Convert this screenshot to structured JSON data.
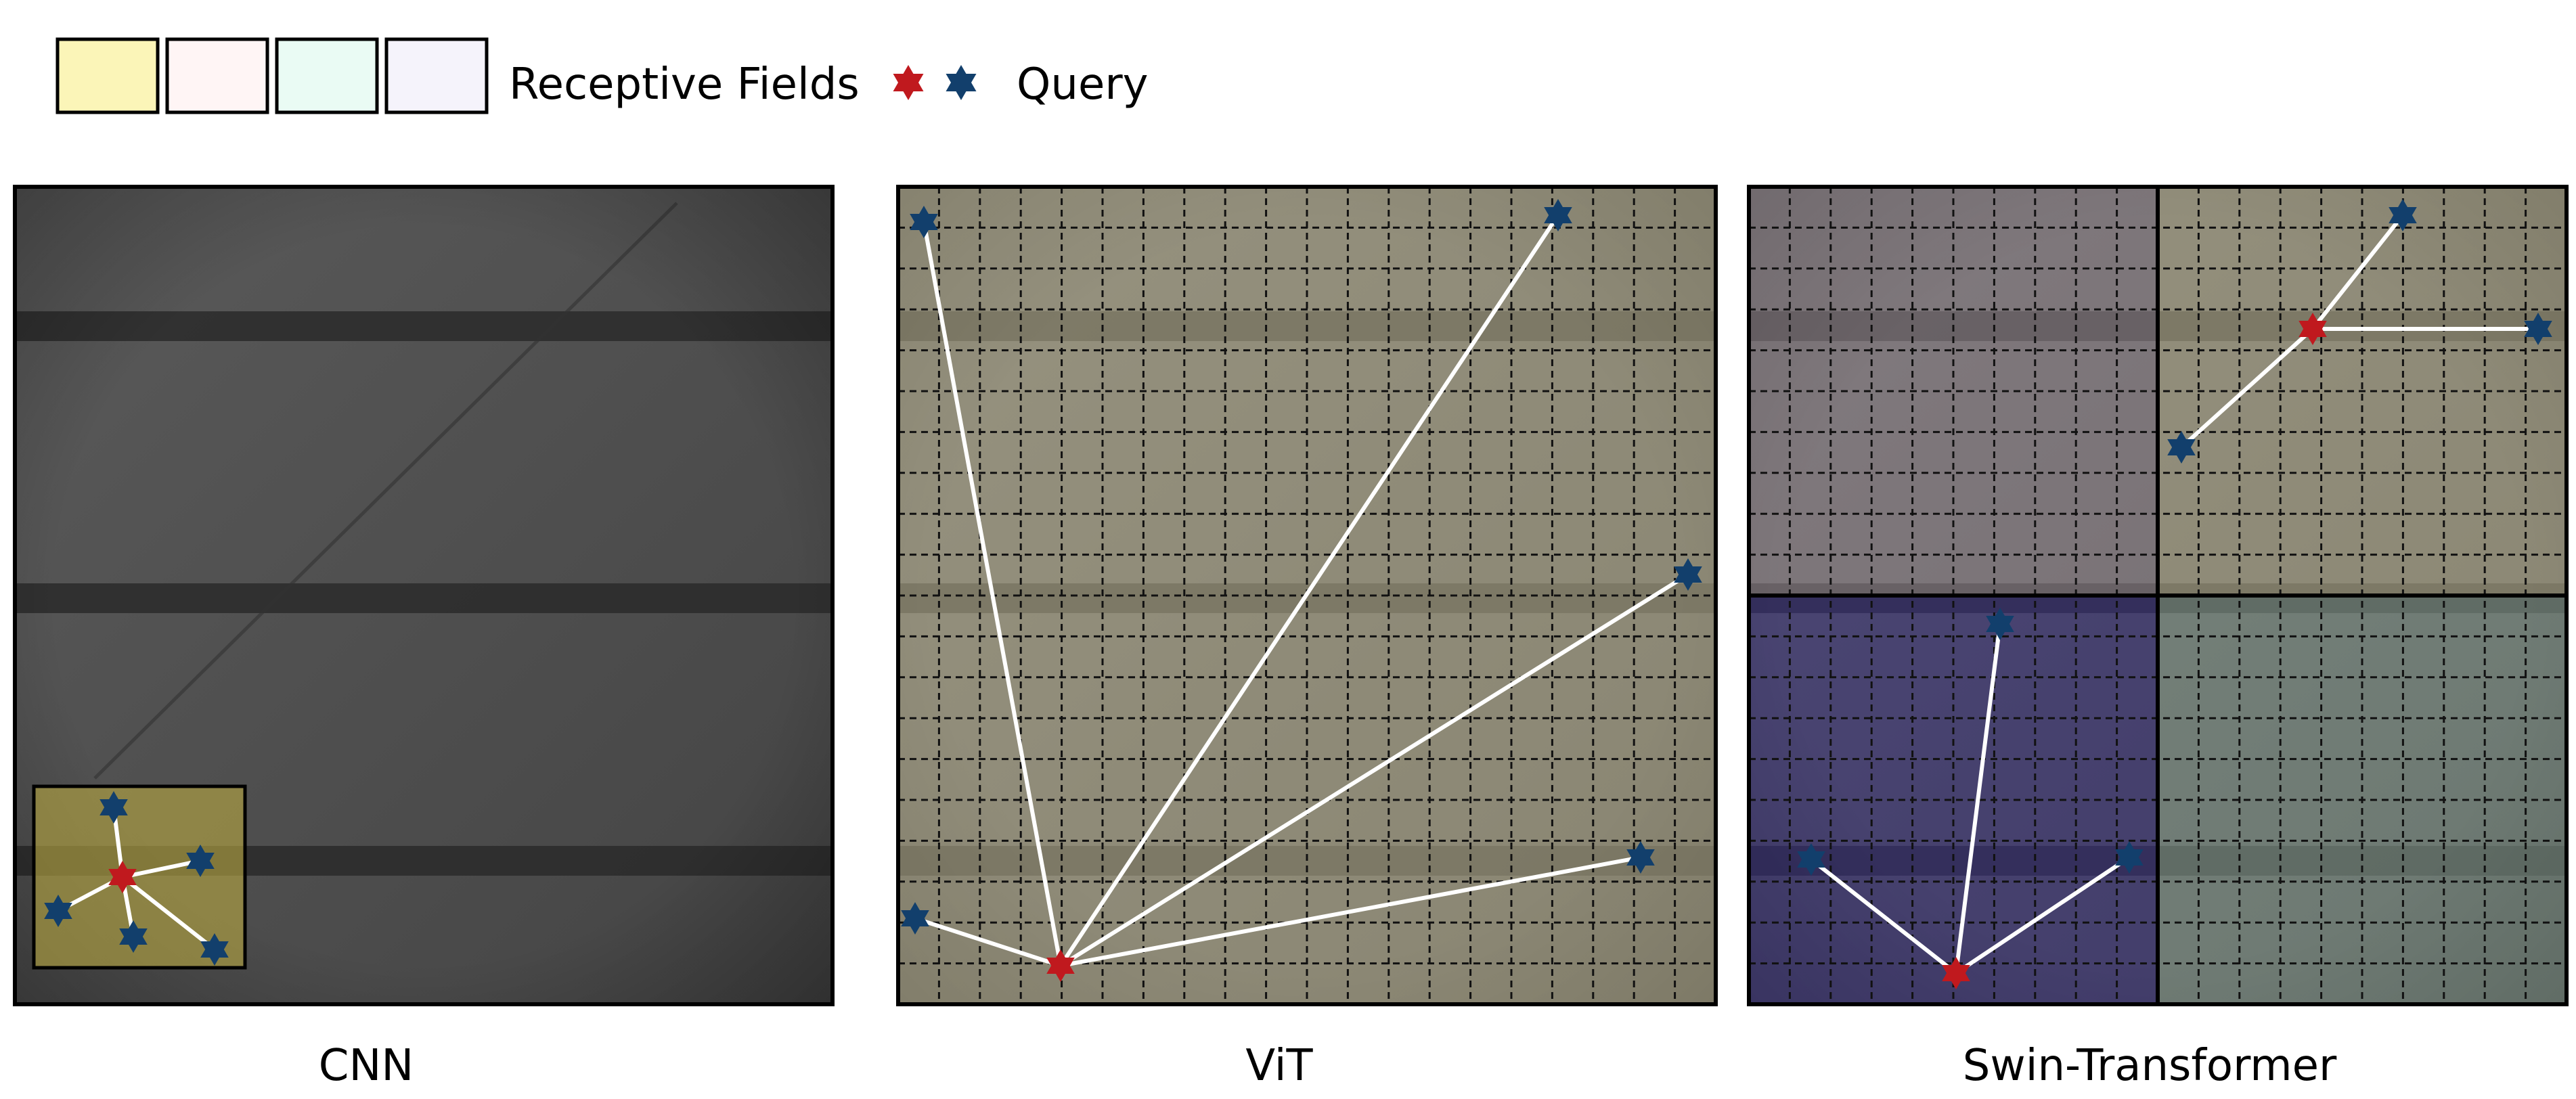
{
  "legend": {
    "swatch_colors": [
      "#FBF5B8",
      "#FFF5F5",
      "#EAFBF4",
      "#F5F3FB"
    ],
    "receptive_label": "Receptive Fields",
    "query_label": "Query",
    "query_colors": {
      "center": "#C0191E",
      "neighbor": "#123F6C"
    }
  },
  "panels": [
    {
      "caption": "CNN"
    },
    {
      "caption": "ViT"
    },
    {
      "caption": "Swin-Transformer"
    }
  ],
  "colors": {
    "cell_base": "#4F4F4F",
    "cell_band": "#2A2A2A",
    "vit_tint": "#E9E0B3",
    "swin_tint_a": "#B8A7B0",
    "swin_tint_b": "#E9E0B3",
    "swin_tint_c": "#3B2F9A",
    "swin_tint_d": "#A5C0B0",
    "cnn_window": "#B7A642",
    "link": "#FFFFFF"
  }
}
